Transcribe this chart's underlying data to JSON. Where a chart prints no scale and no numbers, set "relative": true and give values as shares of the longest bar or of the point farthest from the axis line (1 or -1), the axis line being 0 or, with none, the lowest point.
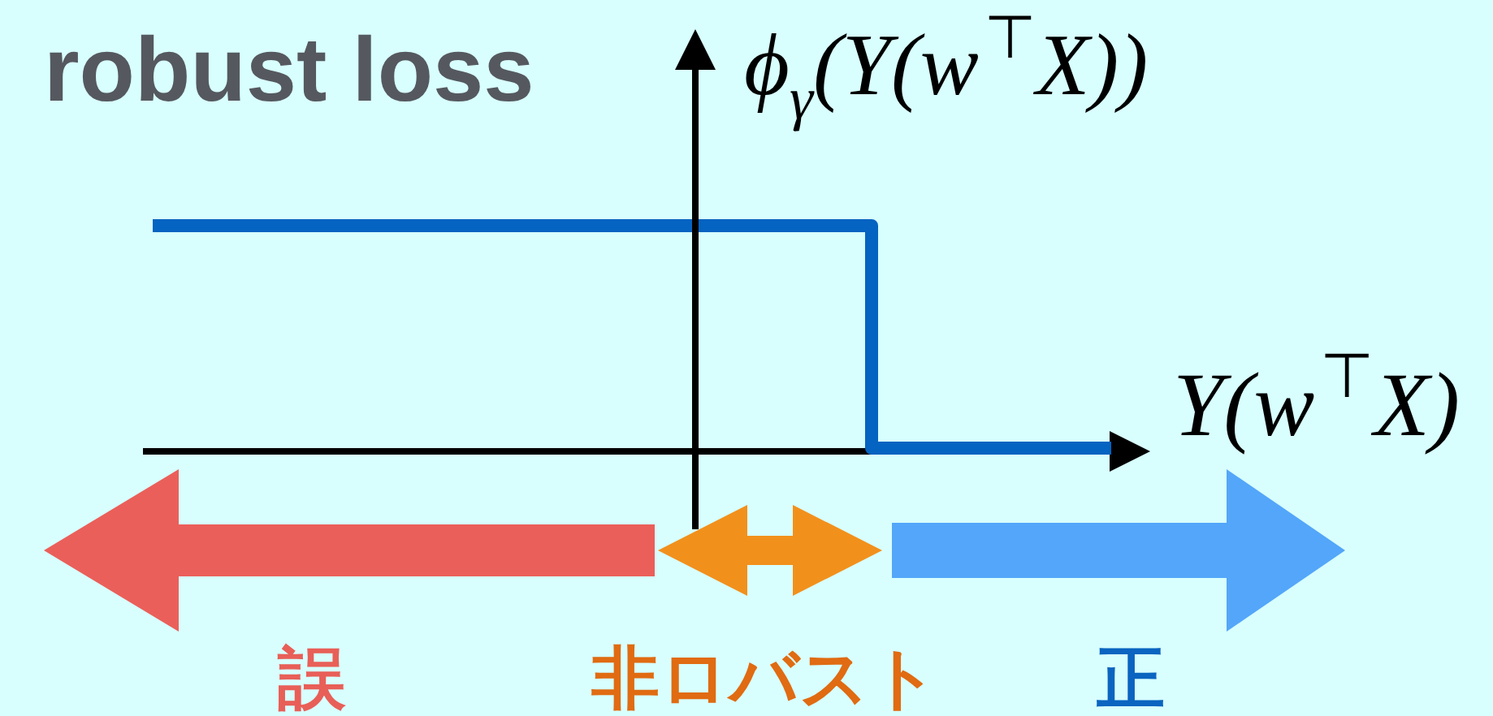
{
  "chart_data": {
    "type": "step",
    "title": "robust loss",
    "xlabel": "Y(w$^{⊤}$X)",
    "ylabel": "ϕ$_{γ}$(Y(w$^{⊤}$X))",
    "relative": true,
    "categories": [
      null,
      null,
      null,
      null,
      null
    ],
    "series": [
      {
        "color": "#0563c1",
        "values": [
          1,
          1,
          1,
          0,
          0
        ]
      }
    ],
    "annotations": [
      "誤",
      "非ロバスト",
      "正"
    ]
  }
}
